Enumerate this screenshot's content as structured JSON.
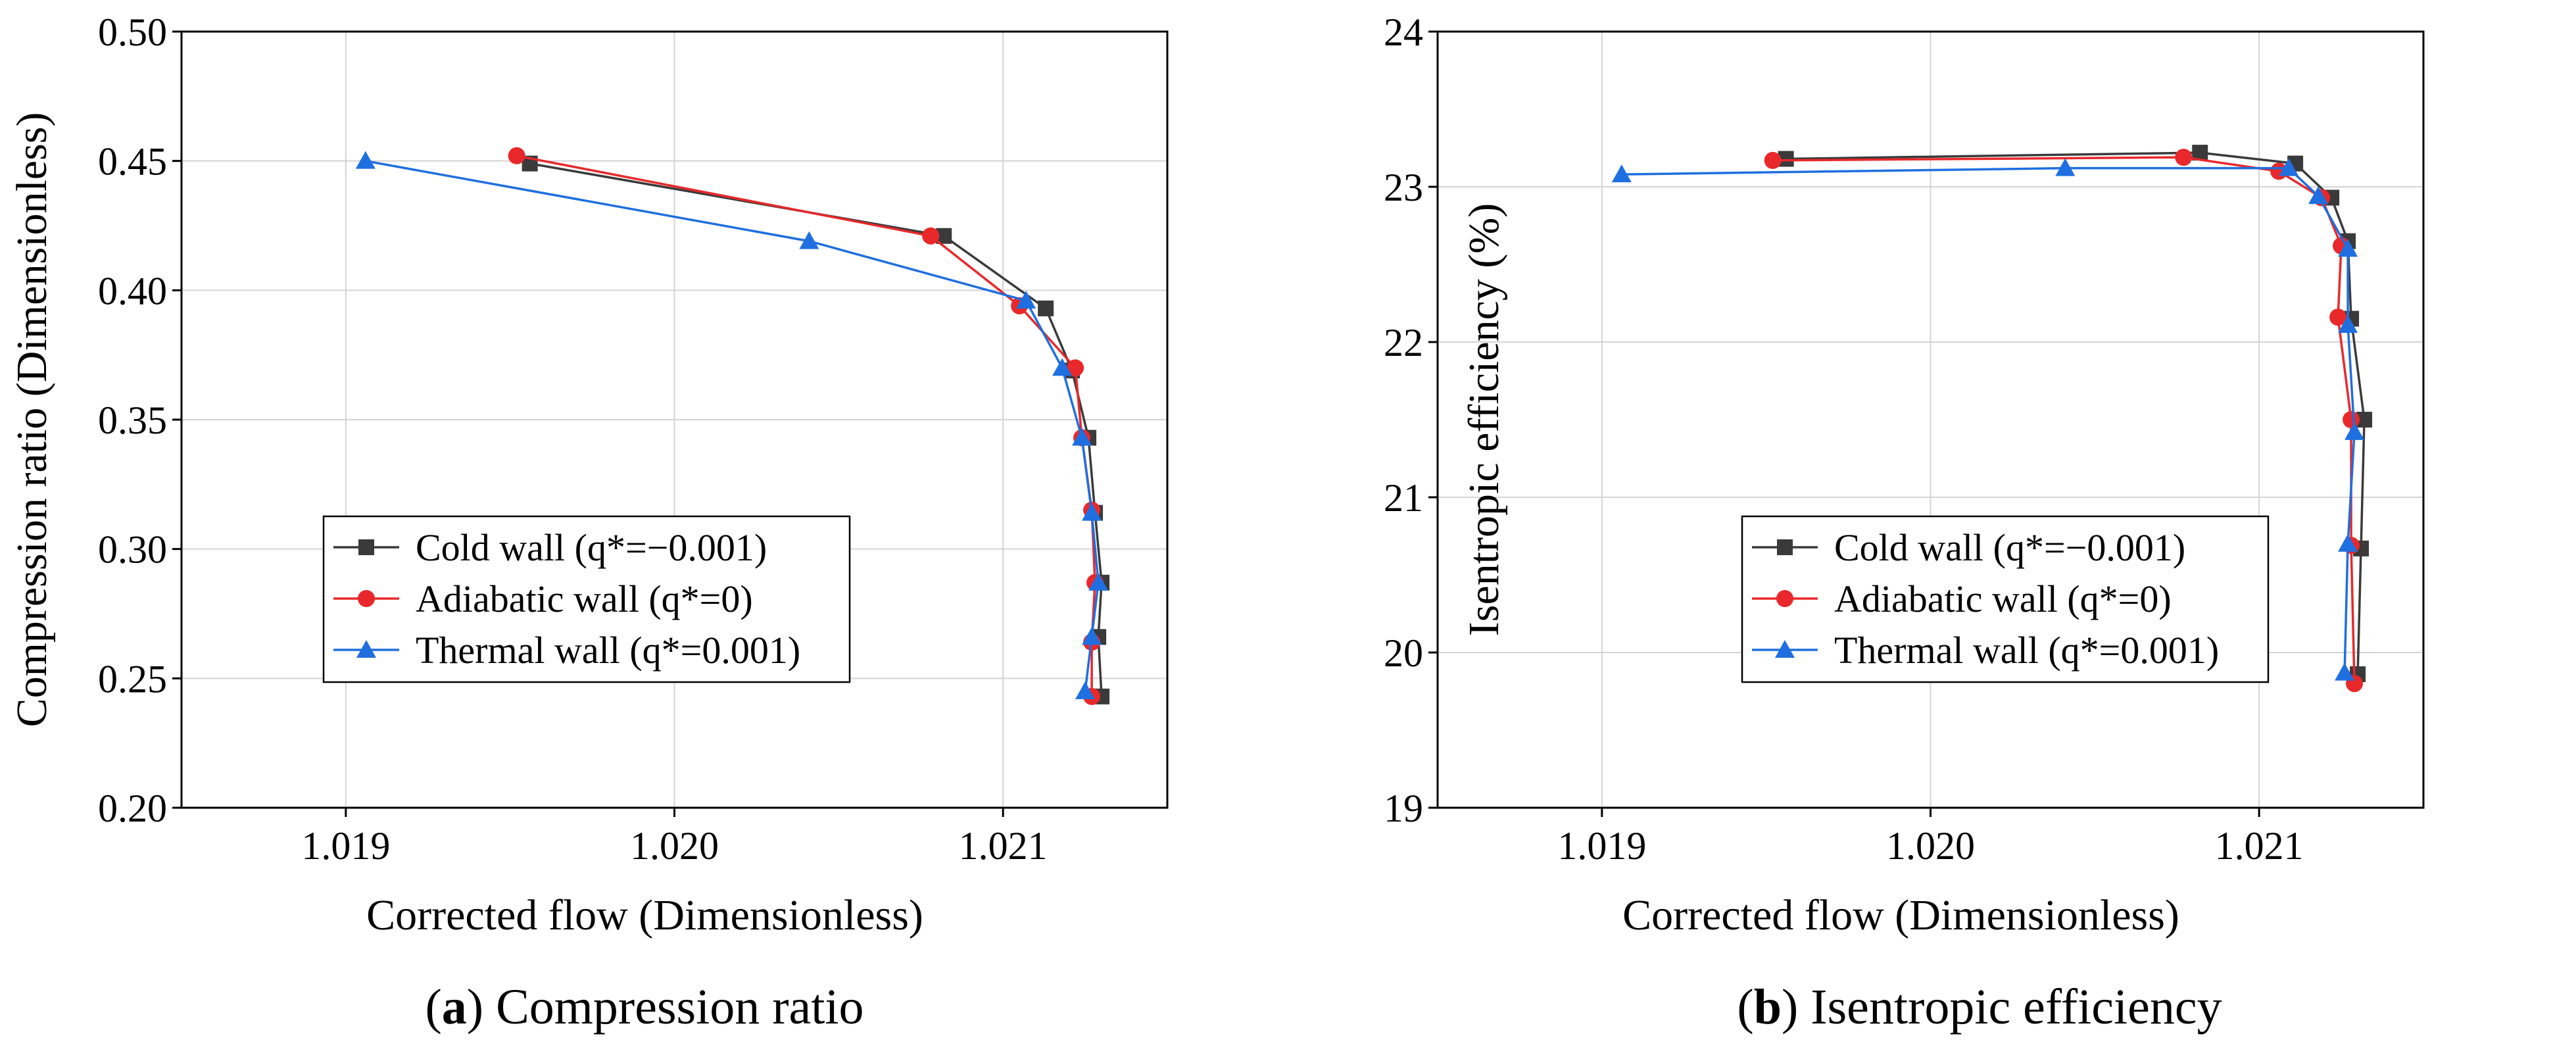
{
  "legend_labels": [
    "Cold wall (q*=−0.001)",
    "Adiabatic wall (q*=0)",
    "Thermal wall (q*=0.001)"
  ],
  "colors": {
    "cold": "#3a3a3a",
    "adiabatic": "#e8282b",
    "thermal": "#1f6fe0"
  },
  "captions": {
    "a": {
      "letter": "a",
      "text": " Compression ratio",
      "open": "(",
      "close": ")"
    },
    "b": {
      "letter": "b",
      "text": " Isentropic efficiency",
      "open": "(",
      "close": ")"
    }
  },
  "chart_data": [
    {
      "type": "line",
      "xlabel": "Corrected flow (Dimensionless)",
      "ylabel": "Compression ratio (Dimensionless)",
      "xlim": [
        1.0185,
        1.0215
      ],
      "ylim": [
        0.2,
        0.5
      ],
      "xticks": [
        1.019,
        1.02,
        1.021
      ],
      "xtick_labels": [
        "1.019",
        "1.020",
        "1.021"
      ],
      "yticks": [
        0.2,
        0.25,
        0.3,
        0.35,
        0.4,
        0.45,
        0.5
      ],
      "ytick_labels": [
        "0.20",
        "0.25",
        "0.30",
        "0.35",
        "0.40",
        "0.45",
        "0.50"
      ],
      "legend_position": "lower-left",
      "series": [
        {
          "name": "Cold wall (q*=−0.001)",
          "marker": "square",
          "x": [
            1.01956,
            1.02082,
            1.02113,
            1.02121,
            1.02126,
            1.02128,
            1.0213,
            1.02129,
            1.0213
          ],
          "y": [
            0.449,
            0.421,
            0.393,
            0.369,
            0.343,
            0.314,
            0.287,
            0.266,
            0.243
          ]
        },
        {
          "name": "Adiabatic wall (q*=0)",
          "marker": "circle",
          "x": [
            1.01952,
            1.02078,
            1.02105,
            1.02122,
            1.02124,
            1.02127,
            1.02128,
            1.02127,
            1.02127
          ],
          "y": [
            0.452,
            0.421,
            0.394,
            0.37,
            0.343,
            0.315,
            0.287,
            0.264,
            0.243
          ]
        },
        {
          "name": "Thermal wall (q*=0.001)",
          "marker": "triangle",
          "x": [
            1.01906,
            1.02041,
            1.02107,
            1.02118,
            1.02124,
            1.02127,
            1.02129,
            1.02127,
            1.02125
          ],
          "y": [
            0.45,
            0.419,
            0.396,
            0.37,
            0.343,
            0.314,
            0.287,
            0.266,
            0.245
          ]
        }
      ]
    },
    {
      "type": "line",
      "xlabel": "Corrected flow (Dimensionless)",
      "ylabel": "Isentropic efficiency (%)",
      "xlim": [
        1.0185,
        1.0215
      ],
      "ylim": [
        19,
        24
      ],
      "xticks": [
        1.019,
        1.02,
        1.021
      ],
      "xtick_labels": [
        "1.019",
        "1.020",
        "1.021"
      ],
      "yticks": [
        19,
        20,
        21,
        22,
        23,
        24
      ],
      "ytick_labels": [
        "19",
        "20",
        "21",
        "22",
        "23",
        "24"
      ],
      "legend_position": "lower-left",
      "series": [
        {
          "name": "Cold wall (q*=−0.001)",
          "marker": "square",
          "x": [
            1.01956,
            1.02082,
            1.02111,
            1.02122,
            1.02127,
            1.02128,
            1.02132,
            1.02131,
            1.0213
          ],
          "y": [
            23.18,
            23.22,
            23.15,
            22.93,
            22.65,
            22.15,
            21.5,
            20.67,
            19.86
          ]
        },
        {
          "name": "Adiabatic wall (q*=0)",
          "marker": "circle",
          "x": [
            1.01952,
            1.02077,
            1.02106,
            1.02119,
            1.02125,
            1.02124,
            1.02128,
            1.02128,
            1.02129
          ],
          "y": [
            23.17,
            23.19,
            23.1,
            22.93,
            22.62,
            22.16,
            21.5,
            20.69,
            19.8
          ]
        },
        {
          "name": "Thermal wall (q*=0.001)",
          "marker": "triangle",
          "x": [
            1.01906,
            1.02041,
            1.02109,
            1.02118,
            1.02127,
            1.02127,
            1.02129,
            1.02127,
            1.02126
          ],
          "y": [
            23.08,
            23.12,
            23.12,
            22.94,
            22.6,
            22.11,
            21.42,
            20.7,
            19.87
          ]
        }
      ]
    }
  ]
}
